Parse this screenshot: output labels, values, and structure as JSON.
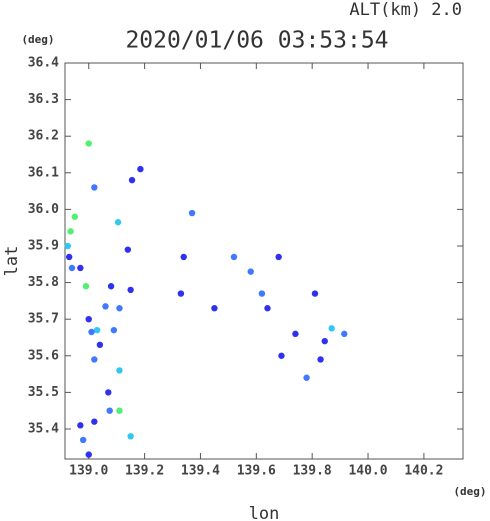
{
  "chart_data": {
    "type": "scatter",
    "title": "2020/01/06 03:53:54",
    "subtitle": "ALT(km)  2.0",
    "x_label": "lon",
    "y_label": "lat",
    "x_unit": "(deg)",
    "y_unit": "(deg)",
    "xlim": [
      138.915,
      140.34
    ],
    "ylim": [
      35.318,
      36.4
    ],
    "xticks": [
      {
        "value": 139,
        "label": "139.0"
      },
      139.2,
      139.4,
      139.6,
      139.8,
      {
        "value": 140,
        "label": "140.0"
      },
      140.2
    ],
    "yticks": [
      35.4,
      35.5,
      35.6,
      35.7,
      35.8,
      35.9,
      {
        "value": 36,
        "label": "36.0"
      },
      36.1,
      36.2,
      36.3,
      36.4
    ],
    "series": [
      {
        "color": "#50f070",
        "x": [
          139.0,
          138.99,
          138.95,
          138.935,
          139.11
        ],
        "y": [
          36.18,
          35.79,
          35.98,
          35.94,
          35.45
        ]
      },
      {
        "color": "#30c8f0",
        "x": [
          139.15,
          138.925,
          139.03,
          139.11,
          139.105,
          139.87
        ],
        "y": [
          35.38,
          35.9,
          35.67,
          35.56,
          35.965,
          35.675
        ]
      },
      {
        "color": "#4078ff",
        "x": [
          139.02,
          139.075,
          139.01,
          138.94,
          139.52,
          139.62,
          139.78,
          139.915,
          139.37,
          139.11,
          139.06,
          139.09,
          139.58,
          139.02,
          138.98
        ],
        "y": [
          36.06,
          35.45,
          35.665,
          35.84,
          35.87,
          35.77,
          35.54,
          35.66,
          35.99,
          35.73,
          35.735,
          35.67,
          35.83,
          35.59,
          35.37
        ]
      },
      {
        "color": "#3030f0",
        "x": [
          139.155,
          139.185,
          138.97,
          139.0,
          139.08,
          139.14,
          139.07,
          138.97,
          139.02,
          139.33,
          139.45,
          139.64,
          139.69,
          139.81,
          139.83,
          139.04,
          138.93,
          139.34,
          139.74,
          139.845,
          139.68,
          139.0,
          139.15
        ],
        "y": [
          36.08,
          36.11,
          35.84,
          35.7,
          35.79,
          35.89,
          35.5,
          35.41,
          35.42,
          35.77,
          35.73,
          35.73,
          35.6,
          35.77,
          35.59,
          35.63,
          35.87,
          35.87,
          35.66,
          35.64,
          35.87,
          35.33,
          35.78
        ]
      }
    ]
  }
}
